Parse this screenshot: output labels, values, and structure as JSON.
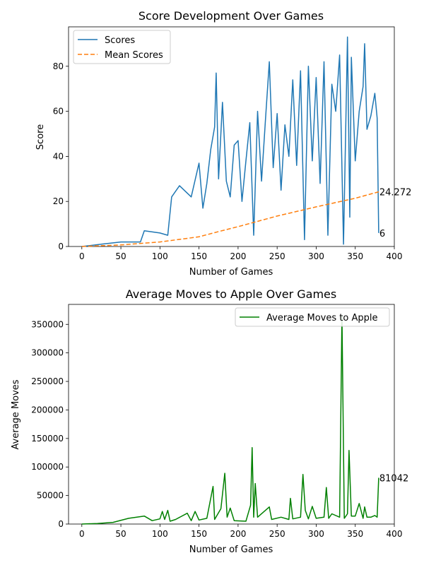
{
  "chart_data": [
    {
      "type": "line",
      "title": "Score Development Over Games",
      "xlabel": "Number of Games",
      "ylabel": "Score",
      "xlim": [
        -17,
        400
      ],
      "ylim": [
        0,
        97.5
      ],
      "x_ticks": [
        0,
        50,
        100,
        150,
        200,
        250,
        300,
        350,
        400
      ],
      "y_ticks": [
        0,
        20,
        40,
        60,
        80
      ],
      "grid": false,
      "legend_position": "upper-left",
      "series": [
        {
          "name": "Scores",
          "color": "#1f77b4",
          "style": "solid",
          "x": [
            0,
            25,
            50,
            75,
            80,
            100,
            110,
            115,
            125,
            140,
            150,
            155,
            160,
            165,
            170,
            172,
            175,
            180,
            185,
            190,
            195,
            200,
            205,
            210,
            215,
            220,
            225,
            230,
            235,
            240,
            245,
            250,
            255,
            260,
            265,
            270,
            275,
            280,
            285,
            290,
            295,
            300,
            305,
            310,
            315,
            320,
            325,
            330,
            335,
            340,
            343,
            345,
            350,
            355,
            360,
            362,
            365,
            370,
            375,
            378,
            380
          ],
          "values": [
            0,
            1,
            2,
            2,
            7,
            6,
            5,
            22,
            27,
            22,
            37,
            17,
            28,
            43,
            53,
            77,
            30,
            64,
            29,
            22,
            45,
            47,
            20,
            38,
            55,
            5,
            60,
            29,
            56,
            82,
            35,
            59,
            25,
            54,
            40,
            74,
            36,
            78,
            3,
            80,
            38,
            75,
            28,
            82,
            5,
            72,
            60,
            85,
            1,
            93,
            13,
            84,
            38,
            60,
            71,
            90,
            52,
            58,
            68,
            57,
            6
          ],
          "end_label": "6"
        },
        {
          "name": "Mean Scores",
          "color": "#ff7f0e",
          "style": "dashed",
          "x": [
            0,
            50,
            100,
            150,
            175,
            200,
            250,
            300,
            350,
            380
          ],
          "values": [
            0,
            0.7,
            2,
            4.3,
            6.6,
            8.8,
            13.5,
            17.6,
            21.4,
            24.272
          ],
          "end_label": "24.272"
        }
      ]
    },
    {
      "type": "line",
      "title": "Average Moves to Apple Over Games",
      "xlabel": "Number of Games",
      "ylabel": "Average Moves",
      "xlim": [
        -17,
        400
      ],
      "ylim": [
        0,
        385000
      ],
      "x_ticks": [
        0,
        50,
        100,
        150,
        200,
        250,
        300,
        350,
        400
      ],
      "y_ticks": [
        0,
        50000,
        100000,
        150000,
        200000,
        250000,
        300000,
        350000
      ],
      "grid": false,
      "legend_position": "upper-right",
      "series": [
        {
          "name": "Average Moves to Apple",
          "color": "#008000",
          "style": "solid",
          "x": [
            0,
            20,
            40,
            60,
            80,
            90,
            100,
            103,
            106,
            110,
            113,
            120,
            135,
            140,
            145,
            150,
            160,
            168,
            170,
            178,
            183,
            186,
            190,
            195,
            210,
            216,
            218,
            220,
            222,
            225,
            240,
            243,
            255,
            265,
            267,
            270,
            280,
            283,
            286,
            290,
            295,
            300,
            310,
            313,
            316,
            320,
            330,
            333,
            336,
            340,
            342,
            345,
            350,
            355,
            360,
            362,
            365,
            370,
            375,
            378,
            380
          ],
          "values": [
            0,
            1000,
            3000,
            10000,
            14000,
            6000,
            9000,
            22000,
            8000,
            24000,
            5000,
            8000,
            19000,
            6000,
            22000,
            7000,
            10000,
            66000,
            8000,
            27000,
            89000,
            12000,
            28000,
            6000,
            5000,
            33000,
            134000,
            12000,
            71000,
            12000,
            30000,
            8000,
            12000,
            8000,
            45000,
            9000,
            12000,
            87000,
            24000,
            9000,
            31000,
            10000,
            12000,
            64000,
            10000,
            18000,
            12000,
            365000,
            10000,
            18000,
            129000,
            14000,
            14000,
            36000,
            10000,
            30000,
            12000,
            12000,
            15000,
            12000,
            81042
          ],
          "end_label": "81042"
        }
      ]
    }
  ]
}
